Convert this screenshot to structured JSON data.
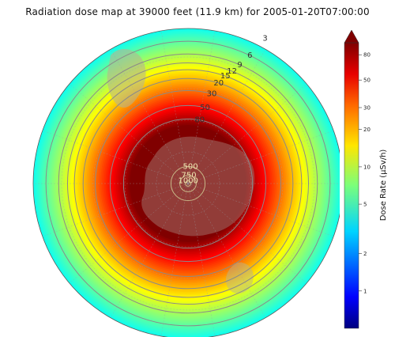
{
  "title": "Radiation dose map at 39000 feet (11.9 km) for 2005-01-20T07:00:00",
  "colorbar": {
    "label": "Dose Rate (μSv/h)",
    "ticks": [
      "1",
      "2",
      "5",
      "10",
      "20",
      "30",
      "50",
      "80"
    ],
    "tick_values": [
      1,
      2,
      5,
      10,
      20,
      30,
      50,
      80
    ],
    "min": 0.5,
    "max": 100,
    "scale": "log",
    "colormap": "jet",
    "extend": "max"
  },
  "map": {
    "projection": "orthographic-south-polar",
    "contour_levels": [
      3,
      6,
      9,
      12,
      15,
      20,
      30,
      50,
      80,
      500,
      750,
      1000
    ],
    "labeled_contours": [
      "3",
      "6",
      "9",
      "12",
      "15",
      "20",
      "30",
      "50",
      "80",
      "500",
      "750",
      "1000"
    ],
    "land_color": "#b0a090",
    "ocean_tint": "#ffffff",
    "grid_color": "#9aa0a6"
  }
}
